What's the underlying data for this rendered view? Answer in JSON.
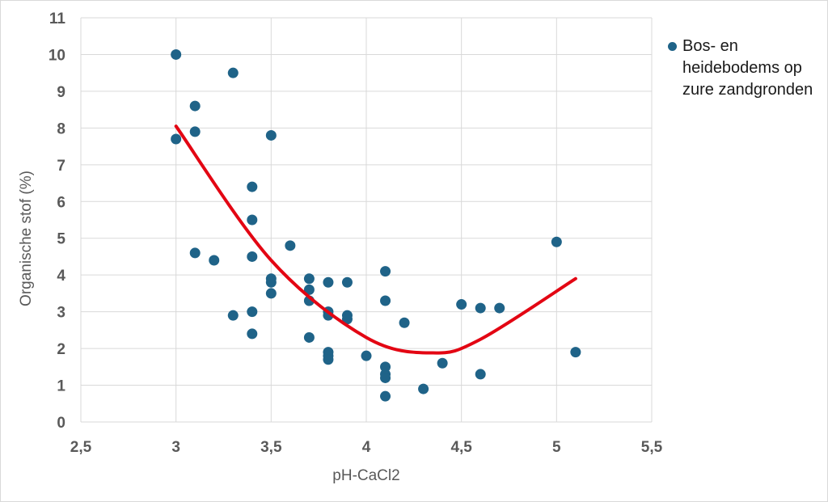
{
  "chart_data": {
    "type": "scatter",
    "title": "",
    "xlabel": "pH-CaCl2",
    "ylabel": "Organische stof (%)",
    "xlim": [
      2.5,
      5.5
    ],
    "ylim": [
      0,
      11
    ],
    "x_ticks": [
      "2,5",
      "3",
      "3,5",
      "4",
      "4,5",
      "5",
      "5,5"
    ],
    "y_ticks": [
      "0",
      "1",
      "2",
      "3",
      "4",
      "5",
      "6",
      "7",
      "8",
      "9",
      "10",
      "11"
    ],
    "grid": true,
    "legend_position": "right",
    "series": [
      {
        "name": "Bos- en heidebodems op zure zandgronden",
        "color": "#1f6388",
        "marker": "circle",
        "points": [
          [
            3.0,
            10.0
          ],
          [
            3.0,
            7.7
          ],
          [
            3.1,
            8.6
          ],
          [
            3.1,
            7.9
          ],
          [
            3.1,
            4.6
          ],
          [
            3.2,
            4.4
          ],
          [
            3.3,
            9.5
          ],
          [
            3.3,
            2.9
          ],
          [
            3.4,
            6.4
          ],
          [
            3.4,
            5.5
          ],
          [
            3.4,
            4.5
          ],
          [
            3.4,
            3.0
          ],
          [
            3.4,
            2.4
          ],
          [
            3.5,
            7.8
          ],
          [
            3.5,
            3.9
          ],
          [
            3.5,
            3.8
          ],
          [
            3.5,
            3.5
          ],
          [
            3.6,
            4.8
          ],
          [
            3.7,
            3.9
          ],
          [
            3.7,
            3.6
          ],
          [
            3.7,
            3.3
          ],
          [
            3.7,
            2.3
          ],
          [
            3.8,
            3.8
          ],
          [
            3.8,
            3.0
          ],
          [
            3.8,
            2.9
          ],
          [
            3.8,
            1.9
          ],
          [
            3.8,
            1.8
          ],
          [
            3.8,
            1.7
          ],
          [
            3.9,
            3.8
          ],
          [
            3.9,
            2.9
          ],
          [
            3.9,
            2.8
          ],
          [
            4.0,
            1.8
          ],
          [
            4.1,
            4.1
          ],
          [
            4.1,
            3.3
          ],
          [
            4.1,
            1.5
          ],
          [
            4.1,
            1.3
          ],
          [
            4.1,
            1.2
          ],
          [
            4.1,
            0.7
          ],
          [
            4.2,
            2.7
          ],
          [
            4.3,
            0.9
          ],
          [
            4.4,
            1.6
          ],
          [
            4.5,
            3.2
          ],
          [
            4.6,
            3.1
          ],
          [
            4.6,
            1.3
          ],
          [
            4.7,
            3.1
          ],
          [
            5.0,
            4.9
          ],
          [
            5.1,
            1.9
          ]
        ]
      }
    ],
    "trendline": {
      "type": "polynomial",
      "color": "#e30613",
      "points": [
        [
          3.0,
          8.05
        ],
        [
          3.5,
          4.4
        ],
        [
          4.0,
          2.3
        ],
        [
          4.35,
          1.88
        ],
        [
          4.6,
          2.25
        ],
        [
          5.1,
          3.9
        ]
      ]
    }
  }
}
